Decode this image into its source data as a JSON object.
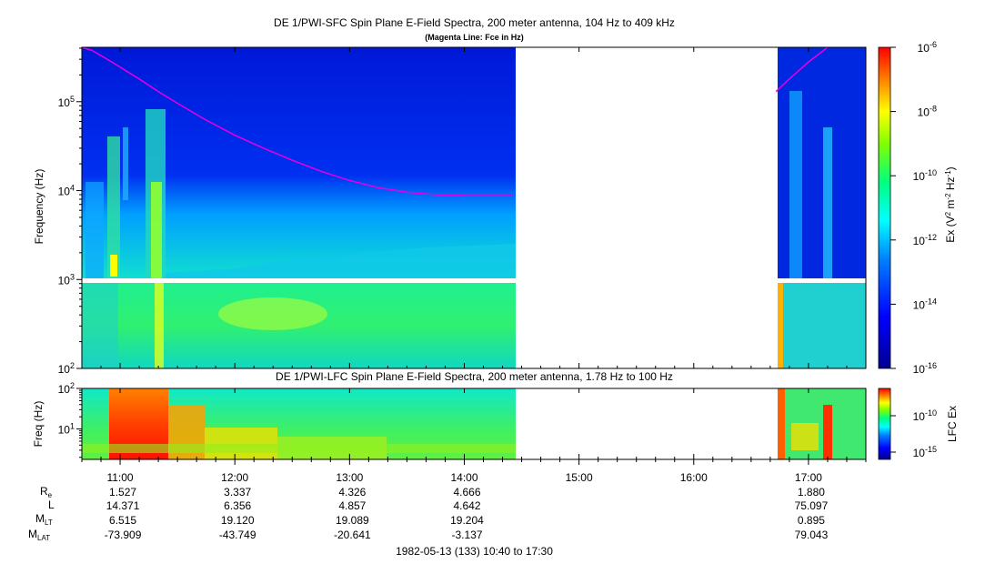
{
  "chart_data": [
    {
      "type": "heatmap",
      "title": "DE 1/PWI-SFC  Spin Plane E-Field Spectra, 200 meter antenna, 104 Hz to 409 kHz",
      "subtitle": "(Magenta Line: Fce in Hz)",
      "ylabel": "Frequency (Hz)",
      "y_scale": "log",
      "ylim": [
        100,
        409000
      ],
      "y_ticks": [
        100,
        1000,
        10000,
        100000
      ],
      "y_tick_labels": [
        {
          "base": "10",
          "exp": "2"
        },
        {
          "base": "10",
          "exp": "3"
        },
        {
          "base": "10",
          "exp": "4"
        },
        {
          "base": "10",
          "exp": "5"
        }
      ],
      "xlim": [
        "10:40",
        "17:30"
      ],
      "data_gap": [
        "14:27",
        "16:43"
      ],
      "colorbar": {
        "label": "Ex (V² m⁻² Hz⁻¹)",
        "scale": "log",
        "range": [
          1e-16,
          1e-06
        ],
        "ticks": [
          {
            "base": "10",
            "exp": "-6"
          },
          {
            "base": "10",
            "exp": "-8"
          },
          {
            "base": "10",
            "exp": "-10"
          },
          {
            "base": "10",
            "exp": "-12"
          },
          {
            "base": "10",
            "exp": "-14"
          },
          {
            "base": "10",
            "exp": "-16"
          }
        ]
      },
      "series": [
        {
          "name": "Fce",
          "color": "#e000e0",
          "points": [
            [
              "10:40",
              409000
            ],
            [
              "10:45",
              380000
            ],
            [
              "10:50",
              330000
            ],
            [
              "10:55",
              285000
            ],
            [
              "11:00",
              245000
            ],
            [
              "11:10",
              180000
            ],
            [
              "11:20",
              130000
            ],
            [
              "11:30",
              96000
            ],
            [
              "11:45",
              62000
            ],
            [
              "12:00",
              42000
            ],
            [
              "12:15",
              30000
            ],
            [
              "12:30",
              22000
            ],
            [
              "12:45",
              16500
            ],
            [
              "13:00",
              13000
            ],
            [
              "13:15",
              10800
            ],
            [
              "13:30",
              9600
            ],
            [
              "13:45",
              9000
            ],
            [
              "14:00",
              8800
            ],
            [
              "14:15",
              8800
            ],
            [
              "14:25",
              8800
            ],
            [
              "16:43",
              130000
            ],
            [
              "16:50",
              180000
            ],
            [
              "17:00",
              280000
            ],
            [
              "17:10",
              409000
            ]
          ]
        }
      ]
    },
    {
      "type": "heatmap",
      "title": "DE 1/PWI-LFC  Spin Plane E-Field Spectra, 200 meter antenna, 1.78 Hz to 100 Hz",
      "ylabel": "Freq (Hz)",
      "y_scale": "log",
      "ylim": [
        1.78,
        100
      ],
      "y_tick_labels": [
        {
          "base": "10",
          "exp": "2"
        },
        {
          "base": "10",
          "exp": "1"
        }
      ],
      "xlim": [
        "10:40",
        "17:30"
      ],
      "data_gap": [
        "14:27",
        "16:43"
      ],
      "colorbar": {
        "label": "LFC Ex",
        "scale": "log",
        "ticks": [
          {
            "base": "10",
            "exp": "-10"
          },
          {
            "base": "10",
            "exp": "-15"
          }
        ]
      }
    }
  ],
  "x_axis": {
    "tick_labels": [
      "11:00",
      "12:00",
      "13:00",
      "14:00",
      "15:00",
      "16:00",
      "17:00"
    ],
    "ephemeris": {
      "rows": [
        {
          "label": "R",
          "sub": "e",
          "values": [
            "1.527",
            "3.337",
            "4.326",
            "4.666",
            "",
            "",
            "1.880"
          ]
        },
        {
          "label": "L",
          "sub": "",
          "values": [
            "14.371",
            "6.356",
            "4.857",
            "4.642",
            "",
            "",
            "75.097"
          ]
        },
        {
          "label": "M",
          "sub": "LT",
          "values": [
            "6.515",
            "19.120",
            "19.089",
            "19.204",
            "",
            "",
            "0.895"
          ]
        },
        {
          "label": "M",
          "sub": "LAT",
          "values": [
            "-73.909",
            "-43.749",
            "-20.641",
            "-3.137",
            "",
            "",
            "79.043"
          ]
        }
      ]
    },
    "footer": "1982-05-13 (133) 10:40 to 17:30"
  },
  "colors": {
    "background_low": "#0000c0",
    "mid": "#00e090",
    "high": "#ffff00",
    "peak": "#ff2000",
    "fce_line": "#e000e0"
  }
}
